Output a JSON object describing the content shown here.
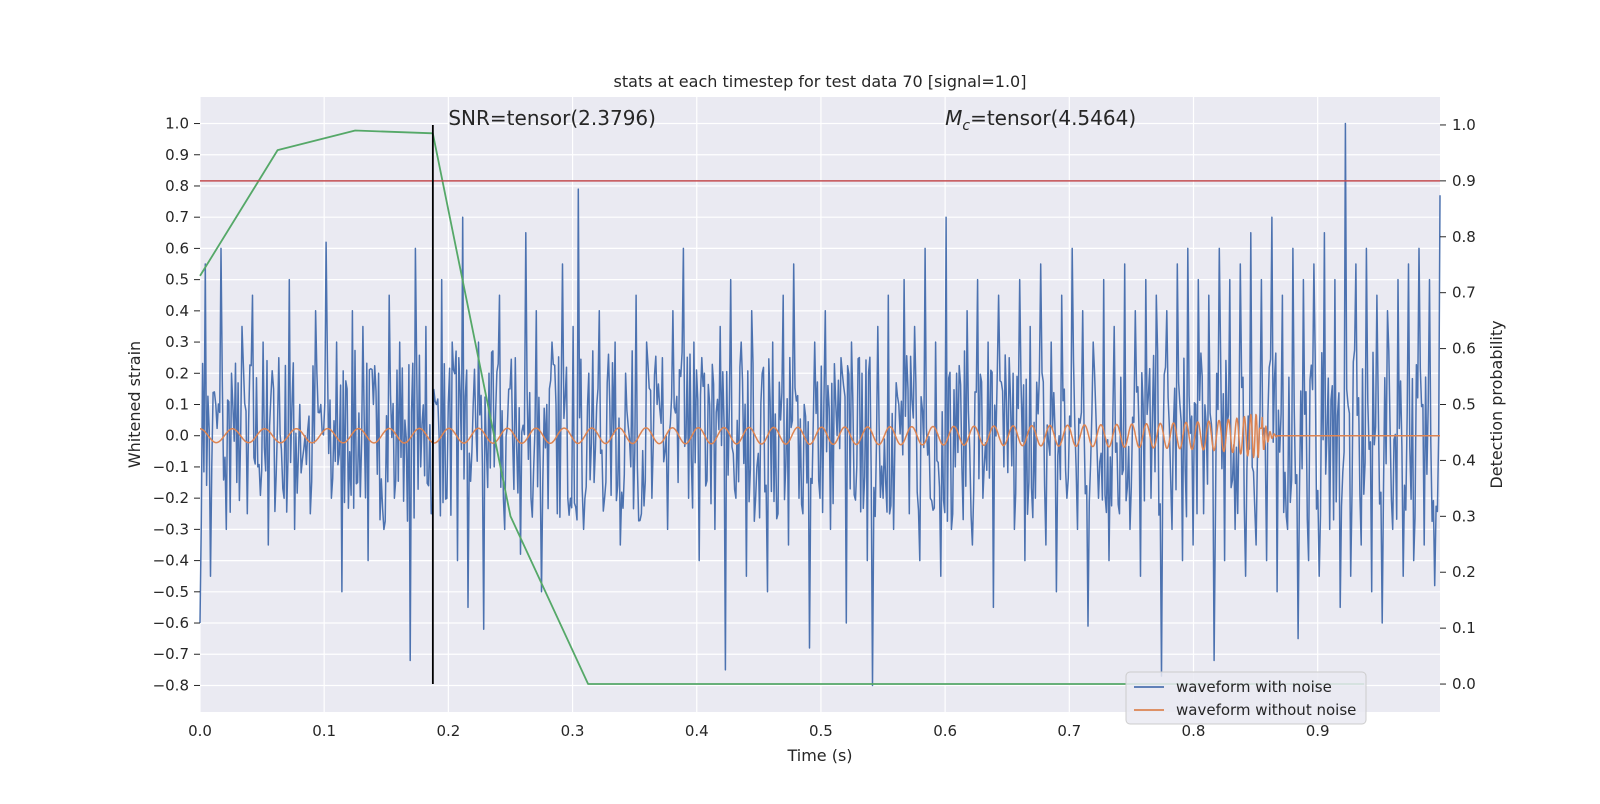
{
  "chart_data": {
    "type": "line",
    "title": "stats at each timestep for test data 70 [signal=1.0]",
    "xlabel": "Time (s)",
    "ylabel_left": "Whitened strain",
    "ylabel_right": "Detection probability",
    "xlim": [
      0.0,
      0.9985
    ],
    "ylim_left": [
      -0.885,
      1.085
    ],
    "ylim_right": [
      -0.05,
      1.05
    ],
    "x_ticks": [
      0.0,
      0.1,
      0.2,
      0.3,
      0.4,
      0.5,
      0.6,
      0.7,
      0.8,
      0.9
    ],
    "x_tick_labels": [
      "0.0",
      "0.1",
      "0.2",
      "0.3",
      "0.4",
      "0.5",
      "0.6",
      "0.7",
      "0.8",
      "0.9"
    ],
    "y_left_ticks": [
      1.0,
      0.9,
      0.8,
      0.7,
      0.6,
      0.5,
      0.4,
      0.3,
      0.2,
      0.1,
      0.0,
      -0.1,
      -0.2,
      -0.3,
      -0.4,
      -0.5,
      -0.6,
      -0.7,
      -0.8
    ],
    "y_left_tick_labels": [
      "1.0",
      "0.9",
      "0.8",
      "0.7",
      "0.6",
      "0.5",
      "0.4",
      "0.3",
      "0.2",
      "0.1",
      "0.0",
      "−0.1",
      "−0.2",
      "−0.3",
      "−0.4",
      "−0.5",
      "−0.6",
      "−0.7",
      "−0.8"
    ],
    "y_right_ticks": [
      1.0,
      0.9,
      0.8,
      0.7,
      0.6,
      0.5,
      0.4,
      0.3,
      0.2,
      0.1,
      0.0
    ],
    "y_right_tick_labels": [
      "1.0",
      "0.9",
      "0.8",
      "0.7",
      "0.6",
      "0.5",
      "0.4",
      "0.3",
      "0.2",
      "0.1",
      "0.0"
    ],
    "grid": true,
    "legend_position": "lower-right",
    "annotations": [
      {
        "text": "SNR=tensor(2.3796)",
        "x": 0.2,
        "y": 1.0
      },
      {
        "text_main": "M",
        "text_sub": "c",
        "text_rest": "=tensor(4.5464)",
        "x": 0.6,
        "y": 1.0
      }
    ],
    "series": [
      {
        "name": "waveform with noise",
        "color": "#4c72b0",
        "axis": "left",
        "x_start": 0.0,
        "x_end": 0.9985,
        "values": [
          -0.6,
          0.55,
          -0.45,
          0.1,
          0.6,
          -0.3,
          0.2,
          -0.15,
          0.35,
          -0.25,
          0.45,
          -0.1,
          0.3,
          -0.35,
          0.15,
          0.25,
          -0.2,
          0.5,
          -0.3,
          0.1,
          0.0,
          -0.25,
          0.4,
          0.1,
          0.62,
          -0.2,
          0.3,
          -0.5,
          0.15,
          0.4,
          -0.15,
          0.35,
          -0.4,
          0.1,
          0.2,
          -0.3,
          0.45,
          -0.2,
          0.3,
          0.05,
          -0.72,
          0.6,
          -0.1,
          0.35,
          -0.25,
          0.1,
          0.5,
          -0.2,
          0.3,
          -0.4,
          0.7,
          -0.55,
          0.1,
          0.3,
          -0.62,
          0.2,
          -0.1,
          0.45,
          -0.3,
          0.15,
          0.25,
          -0.38,
          0.65,
          -0.2,
          0.4,
          -0.5,
          0.1,
          0.3,
          -0.25,
          0.55,
          -0.2,
          0.35,
          0.79,
          -0.3,
          0.2,
          -0.15,
          0.4,
          -0.2,
          0.1,
          0.3,
          -0.35,
          0.2,
          -0.1,
          0.45,
          -0.25,
          0.3,
          -0.2,
          0.1,
          0.25,
          -0.3,
          0.4,
          -0.15,
          0.6,
          -0.2,
          0.3,
          -0.4,
          0.2,
          0.1,
          -0.3,
          0.35,
          -0.75,
          0.5,
          -0.2,
          0.3,
          -0.45,
          0.4,
          -0.1,
          0.2,
          -0.5,
          0.3,
          -0.25,
          0.45,
          -0.35,
          0.55,
          -0.2,
          0.1,
          -0.68,
          0.3,
          -0.2,
          0.4,
          -0.3,
          0.1,
          0.25,
          -0.6,
          0.3,
          -0.1,
          0.2,
          -0.4,
          -0.8,
          0.35,
          -0.2,
          0.45,
          -0.3,
          0.1,
          0.5,
          -0.25,
          0.35,
          -0.4,
          0.6,
          -0.2,
          0.3,
          -0.45,
          0.7,
          -0.3,
          0.2,
          -0.1,
          0.4,
          -0.35,
          0.5,
          -0.2,
          0.3,
          -0.55,
          0.45,
          -0.1,
          0.25,
          -0.3,
          0.5,
          -0.4,
          0.35,
          -0.2,
          0.55,
          -0.35,
          0.3,
          -0.5,
          0.45,
          -0.2,
          0.6,
          -0.3,
          0.4,
          -0.61,
          0.3,
          -0.2,
          0.5,
          -0.4,
          0.35,
          -0.25,
          0.55,
          -0.3,
          0.4,
          -0.45,
          0.5,
          -0.2,
          0.45,
          -0.77,
          0.4,
          -0.3,
          0.55,
          -0.4,
          0.6,
          -0.35,
          0.5,
          -0.25,
          0.45,
          -0.72,
          0.6,
          -0.4,
          0.5,
          -0.3,
          0.55,
          -0.45,
          0.65,
          -0.35,
          0.5,
          -0.4,
          0.7,
          -0.5,
          0.45,
          -0.3,
          0.6,
          -0.65,
          0.5,
          -0.4,
          0.55,
          -0.45,
          0.65,
          -0.3,
          0.5,
          -0.55,
          1.0,
          -0.45,
          0.55,
          -0.35,
          0.6,
          -0.5,
          0.45,
          -0.6,
          0.4,
          -0.3,
          0.5,
          -0.45,
          0.55,
          -0.4,
          0.6,
          -0.35,
          0.5,
          -0.48,
          0.77
        ]
      },
      {
        "name": "waveform without noise",
        "color": "#dd8452",
        "axis": "left",
        "x_start": 0.0,
        "x_end": 0.9985,
        "chirp_start_freq_hz": 38,
        "chirp_coalescence_time_s": 0.855,
        "amplitude_start": 0.022,
        "amplitude_peak": 0.07,
        "amplitude_after_merger": 0.0
      },
      {
        "name": "",
        "color": "#55a868",
        "axis": "right",
        "x": [
          0.0,
          0.0625,
          0.125,
          0.1875,
          0.25,
          0.3125,
          0.375,
          0.4375,
          0.5,
          0.5625,
          0.625,
          0.6875,
          0.75,
          0.8125,
          0.875,
          0.9375
        ],
        "values": [
          0.73,
          0.955,
          0.99,
          0.985,
          0.3,
          0.0,
          0.0,
          0.0,
          0.0,
          0.0,
          0.0,
          0.0,
          0.0,
          0.0,
          0.0,
          0.0
        ]
      }
    ],
    "reference_lines": [
      {
        "orientation": "horizontal",
        "axis": "right",
        "value": 0.9,
        "color": "#c44e52"
      },
      {
        "orientation": "vertical",
        "x": 0.1875,
        "y_range_right": [
          0.0,
          1.0
        ],
        "color": "#000000"
      }
    ],
    "colors": {
      "plot_background": "#eaeaf2",
      "grid": "#ffffff",
      "text": "#262626"
    }
  }
}
